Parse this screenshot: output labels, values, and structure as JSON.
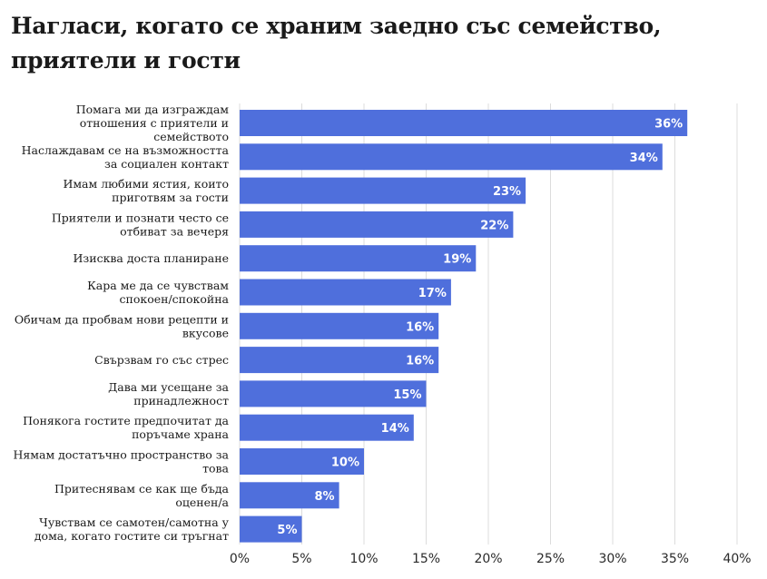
{
  "chart_data": {
    "type": "bar",
    "orientation": "horizontal",
    "title": "Нагласи, когато се храним заедно със семейство, приятели и гости",
    "categories": [
      "Помага ми да изграждам отношения с приятели и семейството",
      "Наслаждавам се на възможността за социален контакт",
      "Имам любими ястия, които приготвям за гости",
      "Приятели и познати често се отбиват за вечеря",
      "Изисква доста планиране",
      "Кара ме да се чувствам спокоен/спокойна",
      "Обичам да пробвам нови рецепти и вкусове",
      "Свързвам го със стрес",
      "Дава ми усещане за принадлежност",
      "Понякога гостите предпочитат да поръчаме храна",
      "Нямам достатъчно пространство за това",
      "Притеснявам се как ще бъда оценен/а",
      "Чувствам се самотен/самотна у дома, когато гостите си тръгнат"
    ],
    "values": [
      36,
      34,
      23,
      22,
      19,
      17,
      16,
      16,
      15,
      14,
      10,
      8,
      5
    ],
    "data_labels": [
      "36%",
      "34%",
      "23%",
      "22%",
      "19%",
      "17%",
      "16%",
      "16%",
      "15%",
      "14%",
      "10%",
      "8%",
      "5%"
    ],
    "xlim": [
      0,
      40
    ],
    "x_ticks": [
      0,
      5,
      10,
      15,
      20,
      25,
      30,
      35,
      40
    ],
    "x_tick_labels": [
      "0%",
      "5%",
      "10%",
      "15%",
      "20%",
      "25%",
      "30%",
      "35%",
      "40%"
    ],
    "xlabel": "",
    "ylabel": "",
    "grid": true,
    "legend": "none",
    "bar_color": "#4f6fdc",
    "grid_color": "#dcdcdc"
  }
}
